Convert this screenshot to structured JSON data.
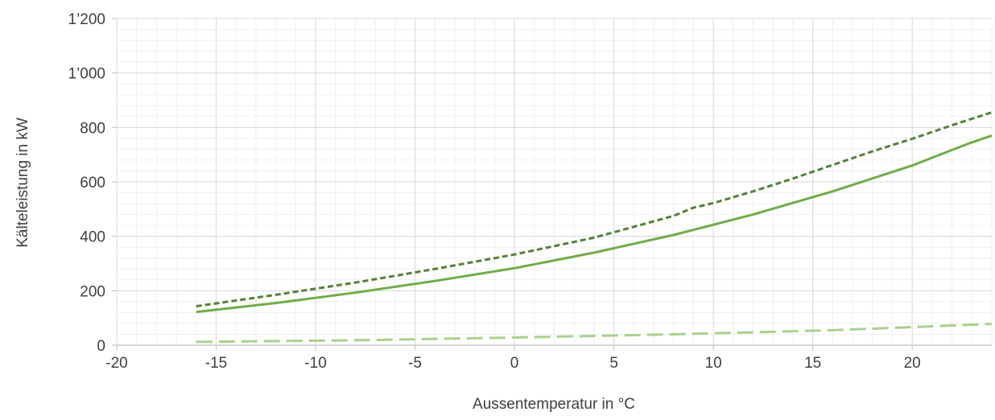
{
  "chart_data": {
    "type": "line",
    "title": "",
    "xlabel": "Aussentemperatur in °C",
    "ylabel": "Kälteleistung in kW",
    "xlim": [
      -20,
      24
    ],
    "ylim": [
      0,
      1200
    ],
    "x_ticks": [
      -20,
      -15,
      -10,
      -5,
      0,
      5,
      10,
      15,
      20
    ],
    "x_tick_labels": [
      "-20",
      "-15",
      "-10",
      "-5",
      "0",
      "5",
      "10",
      "15",
      "20"
    ],
    "y_ticks": [
      0,
      200,
      400,
      600,
      800,
      1000,
      1200
    ],
    "y_tick_labels": [
      "0",
      "200",
      "400",
      "600",
      "800",
      "1’000",
      "1’200"
    ],
    "grid": {
      "major": true,
      "minor": true
    },
    "legend": "none",
    "series": [
      {
        "style": "dashed",
        "color": "#548235",
        "x": [
          -16,
          -12,
          -8,
          -4,
          0,
          4,
          8,
          9,
          10,
          12,
          14,
          16,
          18,
          20,
          22,
          24
        ],
        "values": [
          143,
          185,
          230,
          280,
          333,
          395,
          475,
          505,
          522,
          565,
          612,
          662,
          712,
          758,
          808,
          855
        ]
      },
      {
        "style": "solid",
        "color": "#70ad47",
        "x": [
          -16,
          -12,
          -8,
          -4,
          0,
          4,
          8,
          12,
          16,
          20,
          22,
          23,
          24
        ],
        "values": [
          122,
          155,
          193,
          236,
          283,
          340,
          405,
          480,
          565,
          660,
          717,
          745,
          770
        ]
      },
      {
        "style": "long-dash",
        "color": "#a9d18e",
        "x": [
          -16,
          -8,
          0,
          8,
          16,
          24
        ],
        "values": [
          12,
          18,
          28,
          40,
          55,
          78
        ]
      }
    ]
  }
}
